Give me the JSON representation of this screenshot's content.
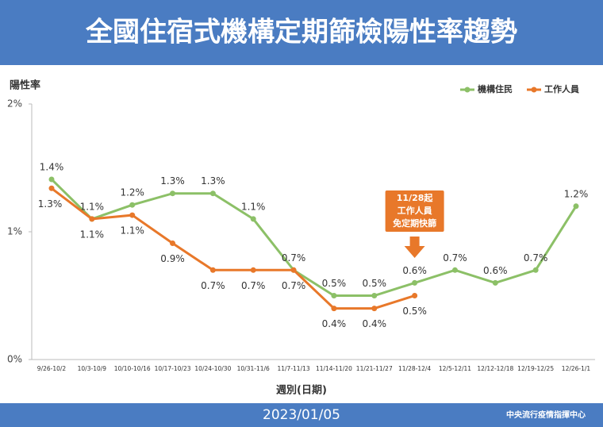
{
  "chart_data": {
    "type": "line",
    "title": "全國住宿式機構定期篩檢陽性率趨勢",
    "y_label": "陽性率",
    "x_label": "週別(日期)",
    "date": "2023/01/05",
    "source": "中央流行疫情指揮中心",
    "categories": [
      "9/26-10/2",
      "10/3-10/9",
      "10/10-10/16",
      "10/17-10/23",
      "10/24-10/30",
      "10/31-11/6",
      "11/7-11/13",
      "11/14-11/20",
      "11/21-11/27",
      "11/28-12/4",
      "12/5-12/11",
      "12/12-12/18",
      "12/19-12/25",
      "12/26-1/1"
    ],
    "ylim": [
      0,
      2
    ],
    "yticks": [
      {
        "value": 0,
        "label": "0%"
      },
      {
        "value": 1,
        "label": "1%"
      },
      {
        "value": 2,
        "label": "2%"
      }
    ],
    "legend": "top-right",
    "series": [
      {
        "name": "機構住民",
        "color": "#8cc067",
        "values": [
          1.41,
          1.1,
          1.21,
          1.3,
          1.3,
          1.1,
          0.7,
          0.5,
          0.5,
          0.6,
          0.7,
          0.6,
          0.7,
          1.2
        ],
        "value_labels": [
          "1.4%",
          "1.1%",
          "1.2%",
          "1.3%",
          "1.3%",
          "1.1%",
          "0.7%",
          "0.5%",
          "0.5%",
          "0.6%",
          "0.7%",
          "0.6%",
          "0.7%",
          "1.2%"
        ]
      },
      {
        "name": "工作人員",
        "color": "#e8782a",
        "values": [
          1.34,
          1.1,
          1.13,
          0.91,
          0.7,
          0.7,
          0.7,
          0.4,
          0.4,
          0.5,
          null,
          null,
          null,
          null
        ],
        "value_labels": [
          "1.3%",
          "1.1%",
          "1.1%",
          "0.9%",
          "0.7%",
          "0.7%",
          "0.7%",
          "0.4%",
          "0.4%",
          "0.5%",
          null,
          null,
          null,
          null
        ]
      }
    ],
    "annotation": {
      "lines": [
        "11/28起",
        "工作人員",
        "免定期快篩"
      ],
      "category": 9
    }
  }
}
